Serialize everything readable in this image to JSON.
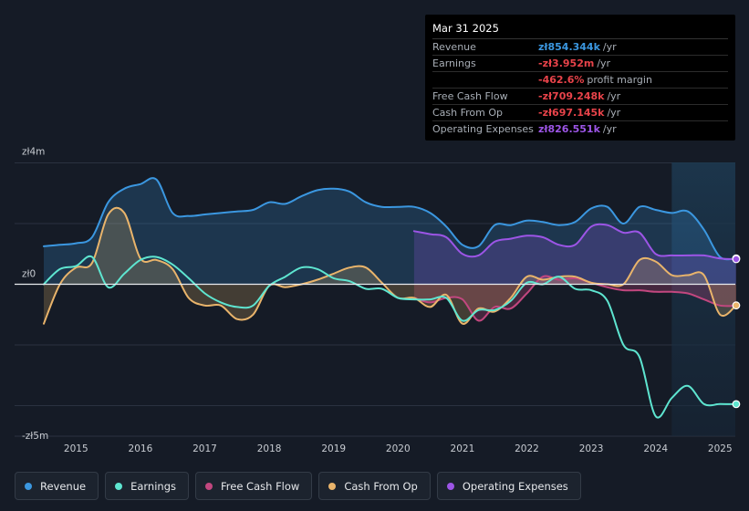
{
  "chart_data": {
    "type": "area",
    "title": "",
    "ylim": [
      -5,
      4
    ],
    "y_labels": [
      {
        "text": "zł4m",
        "value": 4
      },
      {
        "text": "zł0",
        "value": 0
      },
      {
        "text": "-zł5m",
        "value": -5
      }
    ],
    "x_ticks": [
      "2015",
      "2016",
      "2017",
      "2018",
      "2019",
      "2020",
      "2021",
      "2022",
      "2023",
      "2024",
      "2025"
    ],
    "x_tick_years": [
      2015,
      2016,
      2017,
      2018,
      2019,
      2020,
      2021,
      2022,
      2023,
      2024,
      2025
    ],
    "highlight_from": 2024.25,
    "series": [
      {
        "name": "Revenue",
        "key": "revenue",
        "color": "#3b97e0",
        "area": true,
        "endpoint": true,
        "x": [
          2014.5,
          2014.75,
          2015.0,
          2015.25,
          2015.5,
          2015.75,
          2016.0,
          2016.25,
          2016.5,
          2016.75,
          2017.0,
          2017.25,
          2017.5,
          2017.75,
          2018.0,
          2018.25,
          2018.5,
          2018.75,
          2019.0,
          2019.25,
          2019.5,
          2019.75,
          2020.0,
          2020.25,
          2020.5,
          2020.75,
          2021.0,
          2021.25,
          2021.5,
          2021.75,
          2022.0,
          2022.25,
          2022.5,
          2022.75,
          2023.0,
          2023.25,
          2023.5,
          2023.75,
          2024.0,
          2024.25,
          2024.5,
          2024.75,
          2025.0,
          2025.25
        ],
        "y": [
          1.25,
          1.3,
          1.35,
          1.55,
          2.7,
          3.15,
          3.3,
          3.45,
          2.35,
          2.25,
          2.3,
          2.35,
          2.4,
          2.45,
          2.7,
          2.65,
          2.9,
          3.1,
          3.15,
          3.05,
          2.7,
          2.55,
          2.55,
          2.55,
          2.35,
          1.9,
          1.3,
          1.25,
          1.95,
          1.95,
          2.1,
          2.05,
          1.95,
          2.05,
          2.5,
          2.55,
          2.0,
          2.55,
          2.45,
          2.35,
          2.4,
          1.8,
          0.9,
          0.854
        ]
      },
      {
        "name": "Earnings",
        "key": "earnings",
        "color": "#5ee5d0",
        "area": false,
        "endpoint": true,
        "x": [
          2014.5,
          2014.75,
          2015.0,
          2015.25,
          2015.5,
          2015.75,
          2016.0,
          2016.25,
          2016.5,
          2016.75,
          2017.0,
          2017.25,
          2017.5,
          2017.75,
          2018.0,
          2018.25,
          2018.5,
          2018.75,
          2019.0,
          2019.25,
          2019.5,
          2019.75,
          2020.0,
          2020.25,
          2020.5,
          2020.75,
          2021.0,
          2021.25,
          2021.5,
          2021.75,
          2022.0,
          2022.25,
          2022.5,
          2022.75,
          2023.0,
          2023.25,
          2023.5,
          2023.75,
          2024.0,
          2024.25,
          2024.5,
          2024.75,
          2025.0,
          2025.25
        ],
        "y": [
          0.0,
          0.5,
          0.6,
          0.9,
          -0.1,
          0.35,
          0.8,
          0.9,
          0.65,
          0.2,
          -0.3,
          -0.6,
          -0.75,
          -0.7,
          -0.05,
          0.25,
          0.55,
          0.5,
          0.2,
          0.1,
          -0.15,
          -0.15,
          -0.45,
          -0.5,
          -0.5,
          -0.45,
          -1.2,
          -0.85,
          -0.85,
          -0.55,
          0.05,
          0.0,
          0.25,
          -0.15,
          -0.2,
          -0.55,
          -2.0,
          -2.4,
          -4.35,
          -3.75,
          -3.35,
          -3.95,
          -3.95,
          -3.952
        ]
      },
      {
        "name": "Free Cash Flow",
        "key": "fcf",
        "color": "#c2477f",
        "area": true,
        "endpoint": false,
        "x": [
          2020.25,
          2020.5,
          2020.75,
          2021.0,
          2021.25,
          2021.5,
          2021.75,
          2022.0,
          2022.25,
          2022.5,
          2022.75,
          2023.0,
          2023.25,
          2023.5,
          2023.75,
          2024.0,
          2024.25,
          2024.5,
          2024.75,
          2025.0,
          2025.25
        ],
        "y": [
          -0.45,
          -0.6,
          -0.45,
          -0.5,
          -1.2,
          -0.75,
          -0.8,
          -0.3,
          0.25,
          0.15,
          0.2,
          0.05,
          -0.1,
          -0.2,
          -0.2,
          -0.25,
          -0.25,
          -0.3,
          -0.5,
          -0.7,
          -0.709
        ]
      },
      {
        "name": "Cash From Op",
        "key": "cfo",
        "color": "#e9b46b",
        "area": true,
        "endpoint": true,
        "x": [
          2014.5,
          2014.75,
          2015.0,
          2015.25,
          2015.5,
          2015.75,
          2016.0,
          2016.25,
          2016.5,
          2016.75,
          2017.0,
          2017.25,
          2017.5,
          2017.75,
          2018.0,
          2018.25,
          2018.5,
          2018.75,
          2019.0,
          2019.25,
          2019.5,
          2019.75,
          2020.0,
          2020.25,
          2020.5,
          2020.75,
          2021.0,
          2021.25,
          2021.5,
          2021.75,
          2022.0,
          2022.25,
          2022.5,
          2022.75,
          2023.0,
          2023.25,
          2023.5,
          2023.75,
          2024.0,
          2024.25,
          2024.5,
          2024.75,
          2025.0,
          2025.25
        ],
        "y": [
          -1.3,
          0.0,
          0.55,
          0.7,
          2.3,
          2.35,
          0.85,
          0.8,
          0.5,
          -0.45,
          -0.7,
          -0.7,
          -1.15,
          -1.0,
          -0.05,
          -0.1,
          0.0,
          0.15,
          0.35,
          0.55,
          0.55,
          0.05,
          -0.45,
          -0.45,
          -0.75,
          -0.35,
          -1.3,
          -0.8,
          -0.9,
          -0.45,
          0.25,
          0.15,
          0.25,
          0.25,
          0.05,
          0.0,
          0.0,
          0.8,
          0.75,
          0.3,
          0.3,
          0.3,
          -1.0,
          -0.697
        ]
      },
      {
        "name": "Operating Expenses",
        "key": "opex",
        "color": "#9c55e6",
        "area": true,
        "endpoint": true,
        "x": [
          2020.25,
          2020.5,
          2020.75,
          2021.0,
          2021.25,
          2021.5,
          2021.75,
          2022.0,
          2022.25,
          2022.5,
          2022.75,
          2023.0,
          2023.25,
          2023.5,
          2023.75,
          2024.0,
          2024.25,
          2024.5,
          2024.75,
          2025.0,
          2025.25
        ],
        "y": [
          1.75,
          1.65,
          1.55,
          1.0,
          0.95,
          1.4,
          1.5,
          1.6,
          1.55,
          1.3,
          1.3,
          1.9,
          1.95,
          1.7,
          1.7,
          1.0,
          0.95,
          0.95,
          0.95,
          0.85,
          0.827
        ]
      }
    ]
  },
  "tooltip": {
    "date": "Mar 31 2025",
    "rows": [
      {
        "label": "Revenue",
        "value": "zł854.344k",
        "unit": "/yr",
        "color": "#3b97e0"
      },
      {
        "label": "Earnings",
        "value": "-zł3.952m",
        "unit": "/yr",
        "color": "#e8434a"
      },
      {
        "label": "",
        "value": "-462.6%",
        "unit": "profit margin",
        "color": "#e8434a"
      },
      {
        "label": "Free Cash Flow",
        "value": "-zł709.248k",
        "unit": "/yr",
        "color": "#e8434a"
      },
      {
        "label": "Cash From Op",
        "value": "-zł697.145k",
        "unit": "/yr",
        "color": "#e8434a"
      },
      {
        "label": "Operating Expenses",
        "value": "zł826.551k",
        "unit": "/yr",
        "color": "#9c55e6"
      }
    ]
  },
  "legend": [
    {
      "label": "Revenue",
      "color": "#3b97e0"
    },
    {
      "label": "Earnings",
      "color": "#5ee5d0"
    },
    {
      "label": "Free Cash Flow",
      "color": "#c2477f"
    },
    {
      "label": "Cash From Op",
      "color": "#e9b46b"
    },
    {
      "label": "Operating Expenses",
      "color": "#9c55e6"
    }
  ]
}
